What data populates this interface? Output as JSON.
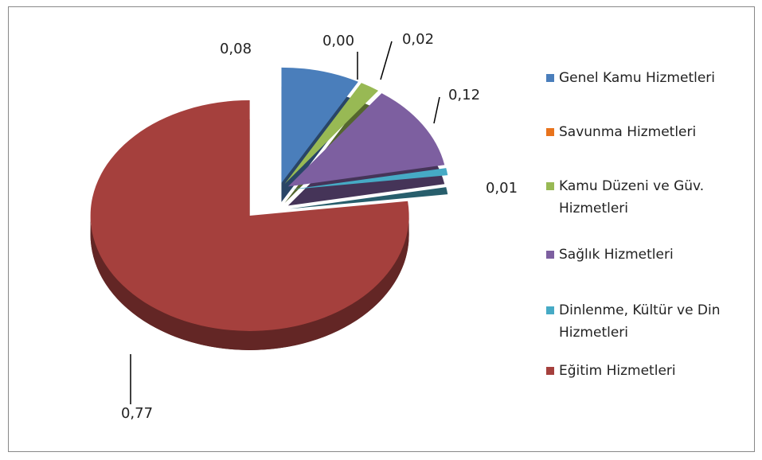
{
  "chart_data": {
    "type": "pie",
    "categories": [
      "Genel Kamu Hizmetleri",
      "Savunma Hizmetleri",
      "Kamu Düzeni ve Güv. Hizmetleri",
      "Sağlık Hizmetleri",
      "Dinlenme, Kültür ve Din Hizmetleri",
      "Eğitim Hizmetleri"
    ],
    "values": [
      0.08,
      0.0,
      0.02,
      0.12,
      0.01,
      0.77
    ],
    "value_labels": [
      "0,08",
      "0,00",
      "0,02",
      "0,12",
      "0,01",
      "0,77"
    ],
    "colors": [
      "#4a7ebb",
      "#e8731c",
      "#98b954",
      "#7d5fa0",
      "#46aac5",
      "#a5403d"
    ],
    "legend": "right"
  }
}
